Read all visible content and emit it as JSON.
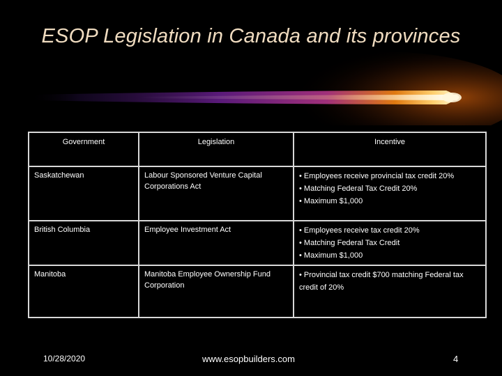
{
  "slide": {
    "title": "ESOP Legislation in Canada and its provinces"
  },
  "table": {
    "headers": {
      "government": "Government",
      "legislation": "Legislation",
      "incentive": "Incentive"
    },
    "rows": [
      {
        "government": "Saskatchewan",
        "legislation": "Labour Sponsored Venture Capital Corporations Act",
        "incentive": [
          "• Employees receive provincial tax credit 20%",
          "• Matching Federal Tax Credit 20%",
          "• Maximum $1,000"
        ]
      },
      {
        "government": "British Columbia",
        "legislation": "Employee Investment Act",
        "incentive": [
          "• Employees receive tax credit 20%",
          "• Matching Federal Tax Credit",
          "• Maximum $1,000"
        ]
      },
      {
        "government": "Manitoba",
        "legislation": "Manitoba Employee Ownership Fund Corporation",
        "incentive": [
          "• Provincial tax credit $700 matching Federal tax credit of 20%"
        ]
      }
    ]
  },
  "footer": {
    "date": "10/28/2020",
    "url": "www.esopbuilders.com",
    "page": "4"
  },
  "colors": {
    "background": "#000000",
    "title": "#f0dcc0",
    "swoosh_core": "#fff2c8",
    "swoosh_orange": "#e07a10",
    "swoosh_purple": "#5a1a7a",
    "table_border": "#d8d8d8"
  }
}
